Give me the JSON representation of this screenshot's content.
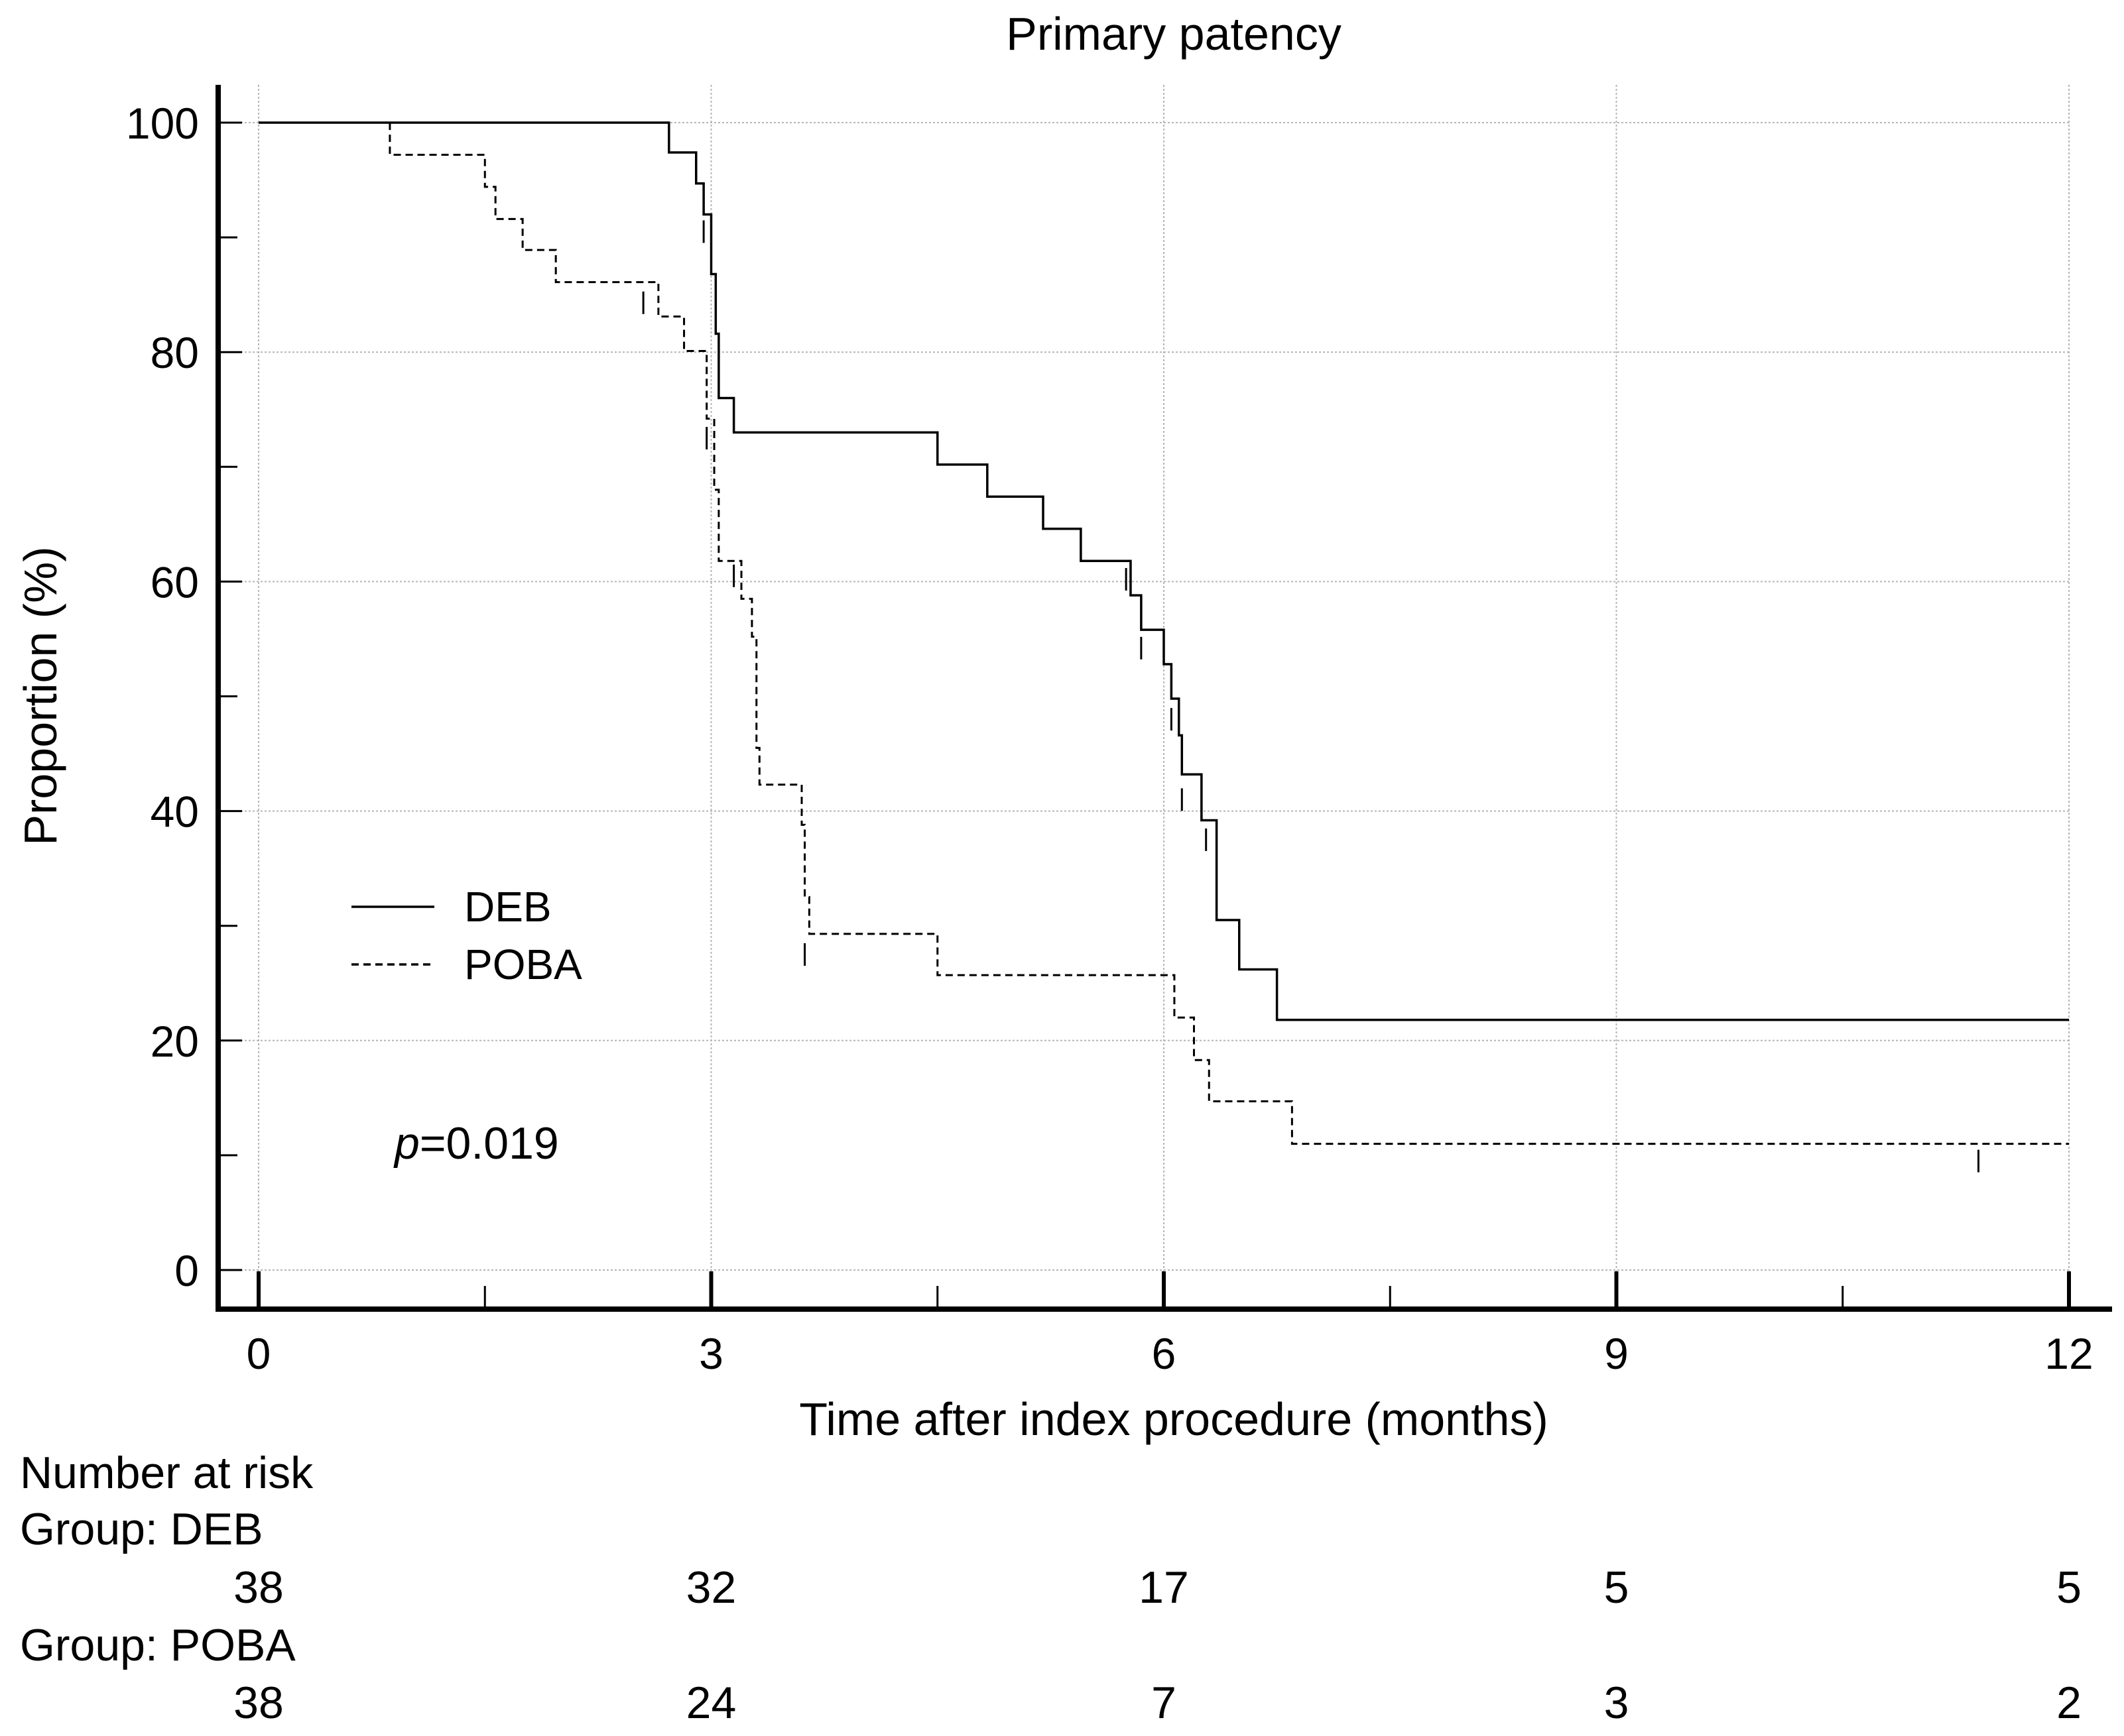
{
  "chart_data": {
    "type": "line",
    "subtype": "kaplan-meier",
    "title": "Primary patency",
    "xlabel": "Time after index procedure (months)",
    "ylabel": "Proportion (%)",
    "xlim": [
      0,
      12
    ],
    "ylim": [
      0,
      100
    ],
    "xticks": [
      0,
      3,
      6,
      9,
      12
    ],
    "yticks": [
      0,
      20,
      40,
      60,
      80,
      100
    ],
    "grid": true,
    "legend_position": "center-left",
    "series": [
      {
        "name": "DEB",
        "style": "solid",
        "steps": [
          [
            0,
            100
          ],
          [
            2.72,
            97.4
          ],
          [
            2.9,
            94.7
          ],
          [
            2.95,
            92.0
          ],
          [
            3.0,
            86.8
          ],
          [
            3.03,
            81.6
          ],
          [
            3.05,
            76.0
          ],
          [
            3.15,
            73.0
          ],
          [
            4.5,
            70.2
          ],
          [
            4.83,
            67.4
          ],
          [
            5.2,
            64.6
          ],
          [
            5.45,
            61.8
          ],
          [
            5.78,
            58.8
          ],
          [
            5.85,
            55.8
          ],
          [
            6.0,
            52.8
          ],
          [
            6.05,
            49.8
          ],
          [
            6.1,
            46.6
          ],
          [
            6.12,
            43.2
          ],
          [
            6.25,
            39.2
          ],
          [
            6.35,
            30.5
          ],
          [
            6.5,
            26.2
          ],
          [
            6.75,
            21.8
          ],
          [
            12,
            21.8
          ]
        ],
        "censored": [
          [
            2.95,
            90.5
          ],
          [
            5.75,
            60.2
          ],
          [
            5.85,
            54.2
          ],
          [
            6.05,
            48.0
          ],
          [
            6.12,
            41.0
          ],
          [
            6.28,
            37.5
          ]
        ]
      },
      {
        "name": "POBA",
        "style": "dashed",
        "steps": [
          [
            0,
            100
          ],
          [
            0.87,
            97.2
          ],
          [
            1.5,
            94.4
          ],
          [
            1.57,
            91.6
          ],
          [
            1.75,
            88.9
          ],
          [
            1.97,
            86.1
          ],
          [
            2.65,
            83.1
          ],
          [
            2.82,
            80.1
          ],
          [
            2.97,
            74.2
          ],
          [
            3.02,
            68.0
          ],
          [
            3.05,
            61.8
          ],
          [
            3.2,
            58.5
          ],
          [
            3.27,
            55.2
          ],
          [
            3.3,
            45.5
          ],
          [
            3.32,
            42.3
          ],
          [
            3.6,
            38.8
          ],
          [
            3.62,
            32.5
          ],
          [
            3.65,
            29.3
          ],
          [
            4.5,
            25.7
          ],
          [
            6.07,
            22.0
          ],
          [
            6.2,
            18.3
          ],
          [
            6.3,
            14.7
          ],
          [
            6.85,
            11.0
          ],
          [
            12,
            11.0
          ]
        ],
        "censored": [
          [
            2.55,
            84.3
          ],
          [
            2.97,
            72.5
          ],
          [
            3.15,
            60.5
          ],
          [
            3.62,
            27.5
          ],
          [
            11.4,
            9.5
          ]
        ]
      }
    ],
    "annotations": [
      {
        "label": "p",
        "value": "=0.019"
      }
    ],
    "risk_table": {
      "title": "Number at risk",
      "times": [
        0,
        3,
        6,
        9,
        12
      ],
      "groups": [
        {
          "label": "Group: DEB",
          "counts": [
            "38",
            "32",
            "17",
            "5",
            "5"
          ]
        },
        {
          "label": "Group: POBA",
          "counts": [
            "38",
            "24",
            "7",
            "3",
            "2"
          ]
        }
      ]
    }
  }
}
